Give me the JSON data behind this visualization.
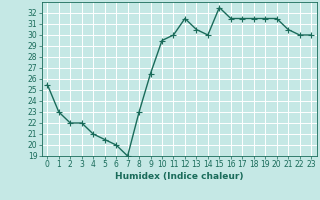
{
  "x": [
    0,
    1,
    2,
    3,
    4,
    5,
    6,
    7,
    8,
    9,
    10,
    11,
    12,
    13,
    14,
    15,
    16,
    17,
    18,
    19,
    20,
    21,
    22,
    23
  ],
  "y": [
    25.5,
    23.0,
    22.0,
    22.0,
    21.0,
    20.5,
    20.0,
    19.0,
    23.0,
    26.5,
    29.5,
    30.0,
    31.5,
    30.5,
    30.0,
    32.5,
    31.5,
    31.5,
    31.5,
    31.5,
    31.5,
    30.5,
    30.0,
    30.0
  ],
  "line_color": "#1a6b5a",
  "marker": "+",
  "markersize": 4,
  "linewidth": 1.0,
  "markeredgewidth": 0.8,
  "xlabel": "Humidex (Indice chaleur)",
  "xlim": [
    -0.5,
    23.5
  ],
  "ylim": [
    19,
    33
  ],
  "yticks": [
    19,
    20,
    21,
    22,
    23,
    24,
    25,
    26,
    27,
    28,
    29,
    30,
    31,
    32
  ],
  "xticks": [
    0,
    1,
    2,
    3,
    4,
    5,
    6,
    7,
    8,
    9,
    10,
    11,
    12,
    13,
    14,
    15,
    16,
    17,
    18,
    19,
    20,
    21,
    22,
    23
  ],
  "bg_color": "#c5e8e5",
  "grid_color": "#ffffff",
  "tick_color": "#1a6b5a",
  "label_color": "#1a6b5a",
  "font_size": 5.5,
  "xlabel_fontsize": 6.5
}
